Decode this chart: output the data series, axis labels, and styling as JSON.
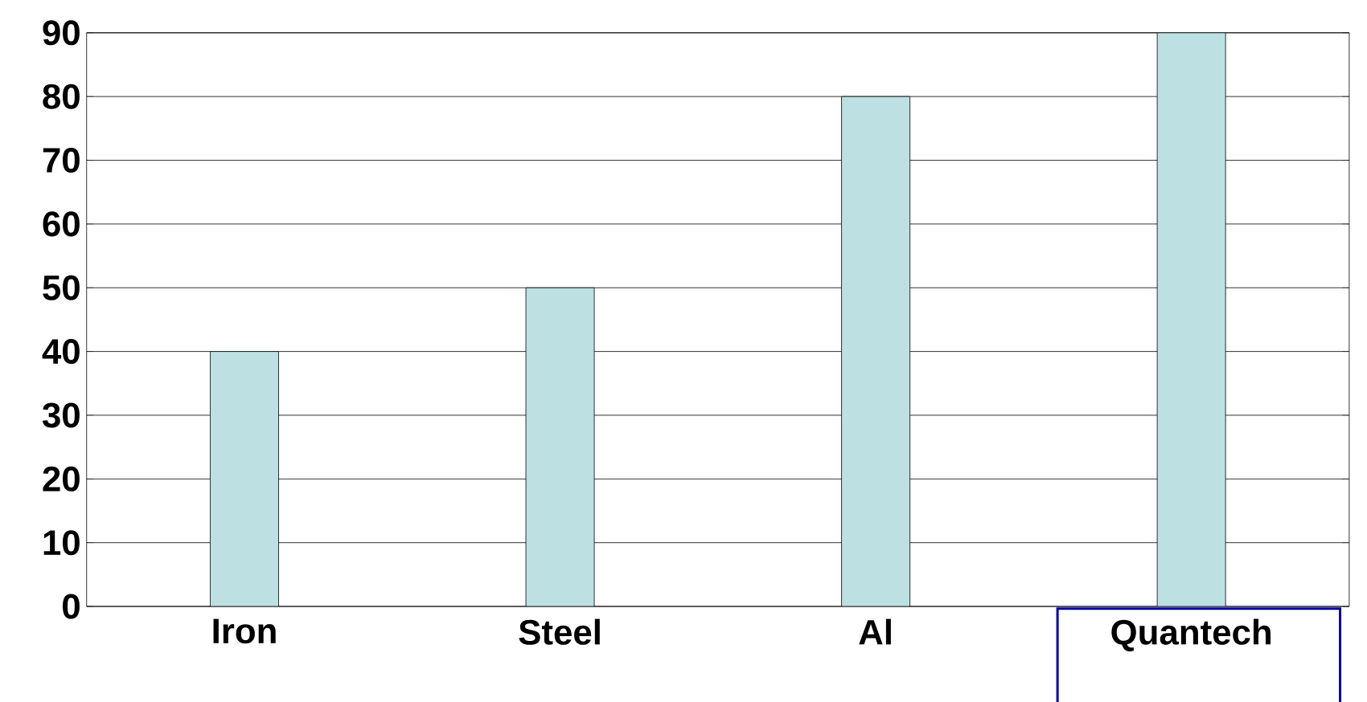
{
  "chart_data": {
    "type": "bar",
    "categories": [
      "Iron",
      "Steel",
      "Al",
      "Quantech"
    ],
    "values": [
      40,
      50,
      80,
      90
    ],
    "color": "#bde0e2",
    "ylim": [
      0,
      90
    ],
    "yticks": [
      0,
      10,
      20,
      30,
      40,
      50,
      60,
      70,
      80,
      90
    ],
    "grid": "y"
  }
}
